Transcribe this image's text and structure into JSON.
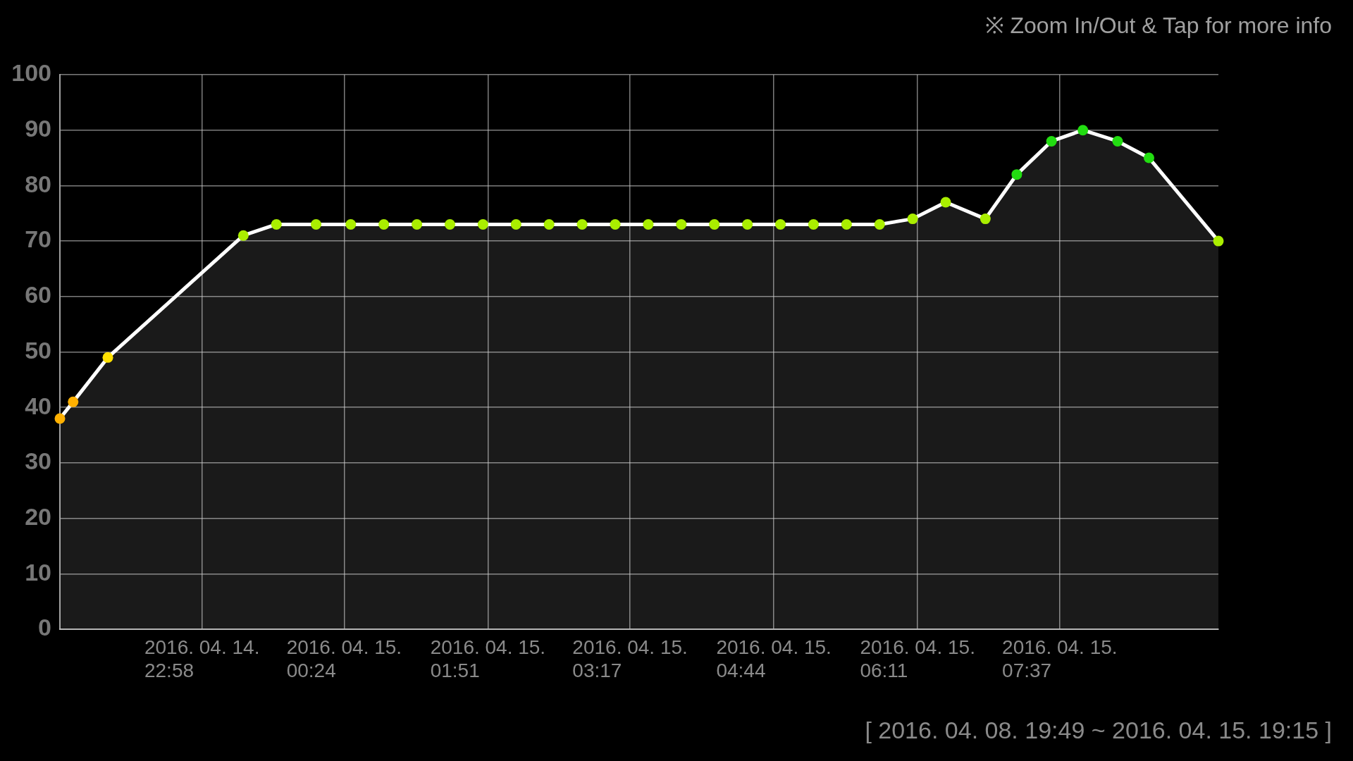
{
  "chart_data": {
    "type": "area",
    "annotations": [
      "※ Zoom In/Out & Tap for more info",
      "[ 2016. 04. 08. 19:49 ~ 2016. 04. 15. 19:15 ]"
    ],
    "x": [
      "2016-04-14T21:32",
      "2016-04-14T21:40",
      "2016-04-14T22:01",
      "2016-04-14T23:23",
      "2016-04-14T23:43",
      "2016-04-15T00:07",
      "2016-04-15T00:28",
      "2016-04-15T00:48",
      "2016-04-15T01:08",
      "2016-04-15T01:28",
      "2016-04-15T01:48",
      "2016-04-15T02:08",
      "2016-04-15T02:28",
      "2016-04-15T02:48",
      "2016-04-15T03:08",
      "2016-04-15T03:28",
      "2016-04-15T03:48",
      "2016-04-15T04:08",
      "2016-04-15T04:28",
      "2016-04-15T04:48",
      "2016-04-15T05:08",
      "2016-04-15T05:28",
      "2016-04-15T05:48",
      "2016-04-15T06:08",
      "2016-04-15T06:28",
      "2016-04-15T06:52",
      "2016-04-15T07:11",
      "2016-04-15T07:32",
      "2016-04-15T07:51",
      "2016-04-15T08:12",
      "2016-04-15T08:31",
      "2016-04-15T09:13"
    ],
    "series": [
      {
        "color": "#ffffff",
        "values": [
          38,
          41,
          49,
          71,
          73,
          73,
          73,
          73,
          73,
          73,
          73,
          73,
          73,
          73,
          73,
          73,
          73,
          73,
          73,
          73,
          73,
          73,
          73,
          74,
          77,
          74,
          82,
          88,
          90,
          88,
          85,
          70
        ],
        "colors": [
          "#ffb000",
          "#ffb000",
          "#ffe000",
          "#aaee00",
          "#aaee00",
          "#aaee00",
          "#aaee00",
          "#aaee00",
          "#aaee00",
          "#aaee00",
          "#aaee00",
          "#aaee00",
          "#aaee00",
          "#aaee00",
          "#aaee00",
          "#aaee00",
          "#aaee00",
          "#aaee00",
          "#aaee00",
          "#aaee00",
          "#aaee00",
          "#aaee00",
          "#aaee00",
          "#aaee00",
          "#aaee00",
          "#aaee00",
          "#22dd11",
          "#22dd11",
          "#22dd11",
          "#22dd11",
          "#22dd11",
          "#aaee00"
        ]
      }
    ],
    "xlim": [
      "2016-04-14T21:32",
      "2016-04-15T09:13"
    ],
    "xticks": [
      {
        "value": "2016-04-14T22:58",
        "label": "2016. 04. 14. 22:58"
      },
      {
        "value": "2016-04-15T00:24",
        "label": "2016. 04. 15. 00:24"
      },
      {
        "value": "2016-04-15T01:51",
        "label": "2016. 04. 15. 01:51"
      },
      {
        "value": "2016-04-15T03:17",
        "label": "2016. 04. 15. 03:17"
      },
      {
        "value": "2016-04-15T04:44",
        "label": "2016. 04. 15. 04:44"
      },
      {
        "value": "2016-04-15T06:11",
        "label": "2016. 04. 15. 06:11"
      },
      {
        "value": "2016-04-15T07:37",
        "label": "2016. 04. 15. 07:37"
      }
    ],
    "ylim": [
      0,
      100
    ],
    "yticks": [
      0,
      10,
      20,
      30,
      40,
      50,
      60,
      70,
      80,
      90,
      100
    ],
    "grid": true,
    "marker": "circle",
    "line_style": "solid"
  }
}
